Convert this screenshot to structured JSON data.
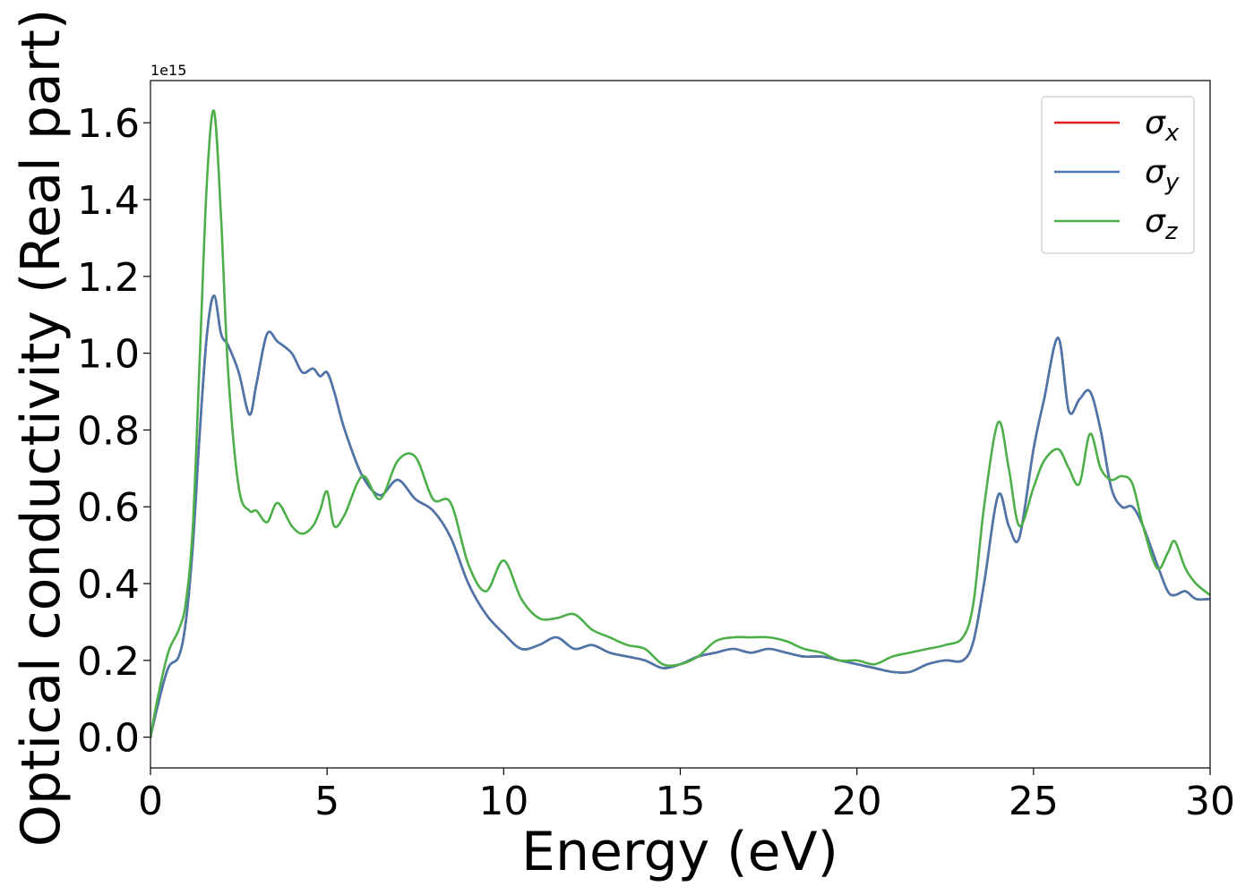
{
  "chart_data": {
    "type": "line",
    "title": "",
    "xlabel": "Energy (eV)",
    "ylabel": "Optical conductivity (Real part)",
    "y_offset_label": "1e15",
    "xlim": [
      0,
      30
    ],
    "ylim": [
      -0.08,
      1.71
    ],
    "x_ticks": [
      0,
      5,
      10,
      15,
      20,
      25,
      30
    ],
    "x_tick_labels": [
      "0",
      "5",
      "10",
      "15",
      "20",
      "25",
      "30"
    ],
    "y_ticks": [
      0.0,
      0.2,
      0.4,
      0.6,
      0.8,
      1.0,
      1.2,
      1.4,
      1.6
    ],
    "y_tick_labels": [
      "0.0",
      "0.2",
      "0.4",
      "0.6",
      "0.8",
      "1.0",
      "1.2",
      "1.4",
      "1.6"
    ],
    "grid": false,
    "legend_position": "top-right",
    "x": [
      0,
      0.2,
      0.5,
      0.8,
      1.0,
      1.2,
      1.4,
      1.6,
      1.8,
      2.0,
      2.2,
      2.5,
      2.8,
      3.0,
      3.3,
      3.6,
      4.0,
      4.3,
      4.6,
      4.8,
      5.0,
      5.2,
      5.5,
      6.0,
      6.5,
      7.0,
      7.5,
      8.0,
      8.5,
      9.0,
      9.5,
      10.0,
      10.5,
      11.0,
      11.5,
      12.0,
      12.5,
      13.0,
      13.5,
      14.0,
      14.5,
      15.0,
      15.5,
      16.0,
      16.5,
      17.0,
      17.5,
      18.0,
      18.5,
      19.0,
      19.5,
      20.0,
      20.5,
      21.0,
      21.5,
      22.0,
      22.5,
      23.0,
      23.3,
      23.6,
      24.0,
      24.3,
      24.6,
      25.0,
      25.3,
      25.7,
      26.0,
      26.3,
      26.6,
      26.9,
      27.2,
      27.5,
      27.8,
      28.1,
      28.5,
      28.8,
      29.0,
      29.3,
      29.6,
      30.0
    ],
    "series": [
      {
        "name": "σx",
        "label_base": "σ",
        "label_sub": "x",
        "color": "#e41a1c",
        "values": [
          0.0,
          0.08,
          0.18,
          0.21,
          0.3,
          0.5,
          0.8,
          1.05,
          1.15,
          1.05,
          1.02,
          0.95,
          0.84,
          0.92,
          1.05,
          1.03,
          1.0,
          0.95,
          0.96,
          0.94,
          0.95,
          0.9,
          0.8,
          0.68,
          0.63,
          0.67,
          0.62,
          0.59,
          0.52,
          0.4,
          0.32,
          0.27,
          0.23,
          0.24,
          0.26,
          0.23,
          0.24,
          0.22,
          0.21,
          0.2,
          0.18,
          0.19,
          0.21,
          0.22,
          0.23,
          0.22,
          0.23,
          0.22,
          0.21,
          0.21,
          0.2,
          0.19,
          0.18,
          0.17,
          0.17,
          0.19,
          0.2,
          0.2,
          0.25,
          0.4,
          0.63,
          0.55,
          0.52,
          0.75,
          0.88,
          1.04,
          0.85,
          0.88,
          0.9,
          0.8,
          0.65,
          0.6,
          0.6,
          0.55,
          0.45,
          0.38,
          0.37,
          0.38,
          0.36,
          0.36
        ]
      },
      {
        "name": "σy",
        "label_base": "σ",
        "label_sub": "y",
        "color": "#4a78ad",
        "values": [
          0.0,
          0.08,
          0.18,
          0.21,
          0.3,
          0.5,
          0.8,
          1.05,
          1.15,
          1.05,
          1.02,
          0.95,
          0.84,
          0.92,
          1.05,
          1.03,
          1.0,
          0.95,
          0.96,
          0.94,
          0.95,
          0.9,
          0.8,
          0.68,
          0.63,
          0.67,
          0.62,
          0.59,
          0.52,
          0.4,
          0.32,
          0.27,
          0.23,
          0.24,
          0.26,
          0.23,
          0.24,
          0.22,
          0.21,
          0.2,
          0.18,
          0.19,
          0.21,
          0.22,
          0.23,
          0.22,
          0.23,
          0.22,
          0.21,
          0.21,
          0.2,
          0.19,
          0.18,
          0.17,
          0.17,
          0.19,
          0.2,
          0.2,
          0.25,
          0.4,
          0.63,
          0.55,
          0.52,
          0.75,
          0.88,
          1.04,
          0.85,
          0.88,
          0.9,
          0.8,
          0.65,
          0.6,
          0.6,
          0.55,
          0.45,
          0.38,
          0.37,
          0.38,
          0.36,
          0.36
        ]
      },
      {
        "name": "σz",
        "label_base": "σ",
        "label_sub": "z",
        "color": "#4daf4a",
        "values": [
          0.0,
          0.1,
          0.22,
          0.28,
          0.35,
          0.55,
          1.0,
          1.45,
          1.63,
          1.35,
          0.95,
          0.65,
          0.59,
          0.59,
          0.56,
          0.61,
          0.55,
          0.53,
          0.55,
          0.59,
          0.64,
          0.55,
          0.58,
          0.68,
          0.62,
          0.72,
          0.73,
          0.62,
          0.61,
          0.45,
          0.38,
          0.46,
          0.36,
          0.31,
          0.31,
          0.32,
          0.28,
          0.26,
          0.24,
          0.23,
          0.19,
          0.19,
          0.21,
          0.25,
          0.26,
          0.26,
          0.26,
          0.25,
          0.23,
          0.22,
          0.2,
          0.2,
          0.19,
          0.21,
          0.22,
          0.23,
          0.24,
          0.26,
          0.35,
          0.6,
          0.82,
          0.7,
          0.55,
          0.65,
          0.72,
          0.75,
          0.7,
          0.66,
          0.79,
          0.7,
          0.67,
          0.68,
          0.66,
          0.55,
          0.44,
          0.48,
          0.51,
          0.44,
          0.4,
          0.37
        ]
      }
    ]
  }
}
